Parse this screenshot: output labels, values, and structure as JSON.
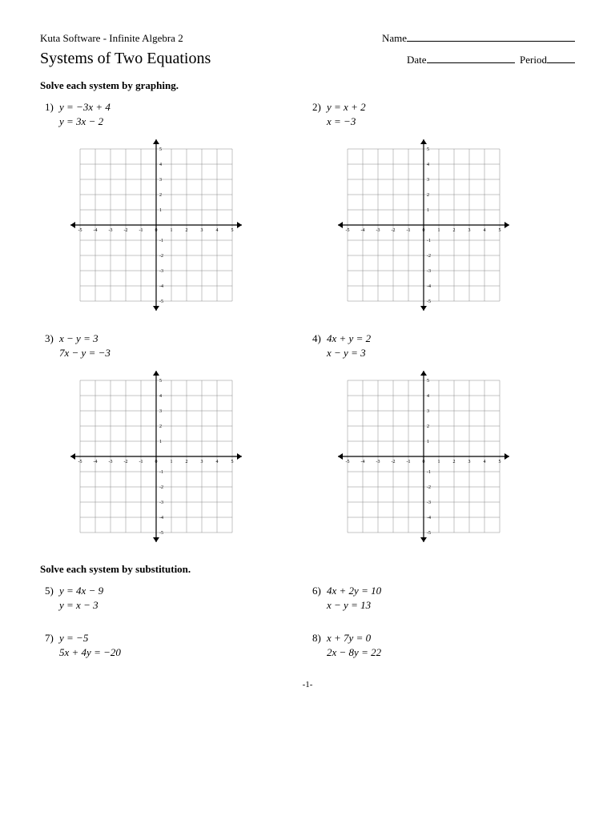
{
  "header": {
    "source": "Kuta Software - Infinite Algebra 2",
    "name_label": "Name",
    "date_label": "Date",
    "period_label": "Period"
  },
  "title": "Systems of Two Equations",
  "section1": "Solve each system by graphing.",
  "section2": "Solve each system by substitution.",
  "problems": {
    "p1": {
      "num": "1)",
      "eq1": "y = −3x + 4",
      "eq2": "y = 3x − 2"
    },
    "p2": {
      "num": "2)",
      "eq1": "y = x + 2",
      "eq2": "x = −3"
    },
    "p3": {
      "num": "3)",
      "eq1": "x − y = 3",
      "eq2": "7x − y = −3"
    },
    "p4": {
      "num": "4)",
      "eq1": "4x + y = 2",
      "eq2": "x − y = 3"
    },
    "p5": {
      "num": "5)",
      "eq1": "y = 4x − 9",
      "eq2": "y = x − 3"
    },
    "p6": {
      "num": "6)",
      "eq1": "4x + 2y = 10",
      "eq2": "x − y = 13"
    },
    "p7": {
      "num": "7)",
      "eq1": "y = −5",
      "eq2": "5x + 4y = −20"
    },
    "p8": {
      "num": "8)",
      "eq1": "x + 7y = 0",
      "eq2": "2x − 8y = 22"
    }
  },
  "grid": {
    "xmin": -5,
    "xmax": 5,
    "ymin": -5,
    "ymax": 5,
    "tick_step": 1,
    "grid_color": "#888888",
    "axis_color": "#000000",
    "label_fontsize": 6,
    "background": "#ffffff"
  },
  "footer": "-1-"
}
